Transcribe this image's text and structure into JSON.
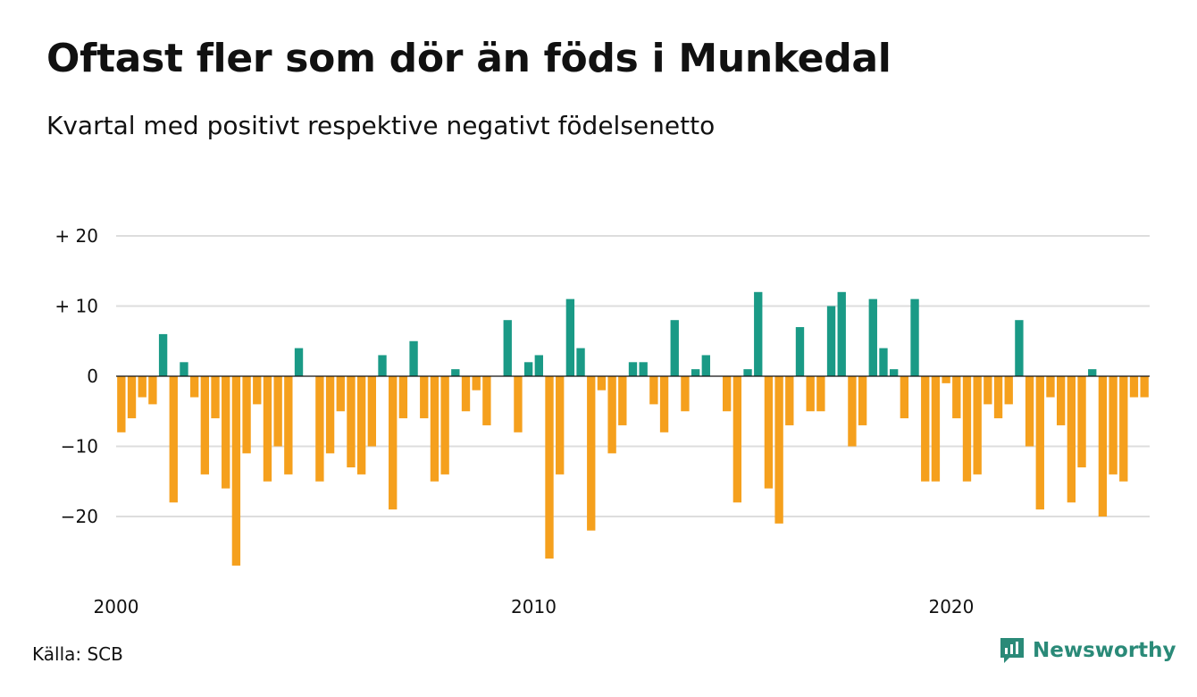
{
  "title": "Oftast fler som dör än föds i Munkedal",
  "subtitle": "Kvartal med positivt respektive negativt födelsenetto",
  "source": "Källa: SCB",
  "brand": "Newsworthy",
  "colors": {
    "positive": "#1a9a86",
    "negative": "#f5a01d",
    "grid": "#dddddd",
    "brand": "#2a8a78"
  },
  "chart_data": {
    "type": "bar",
    "title": "Oftast fler som dör än föds i Munkedal",
    "subtitle": "Kvartal med positivt respektive negativt födelsenetto",
    "ylim": [
      -28,
      20
    ],
    "y_ticks": [
      20,
      10,
      0,
      -10,
      -20
    ],
    "y_tick_labels": [
      "+ 20",
      "+ 10",
      "0",
      "−10",
      "−20"
    ],
    "x_ticks": [
      2000,
      2010,
      2020
    ],
    "grid": true,
    "start": "2000 Q1",
    "values": [
      -8,
      -6,
      -3,
      -4,
      6,
      -18,
      2,
      -3,
      -14,
      -6,
      -16,
      -27,
      -11,
      -4,
      -15,
      -10,
      -14,
      4,
      0,
      -15,
      -11,
      -5,
      -13,
      -14,
      -10,
      3,
      -19,
      -6,
      5,
      -6,
      -15,
      -14,
      1,
      -5,
      -2,
      -7,
      0,
      8,
      -8,
      2,
      3,
      -26,
      -14,
      11,
      4,
      -22,
      -2,
      -11,
      -7,
      2,
      2,
      -4,
      -8,
      8,
      -5,
      1,
      3,
      0,
      -5,
      -18,
      1,
      12,
      -16,
      -21,
      -7,
      7,
      -5,
      -5,
      10,
      12,
      -10,
      -7,
      11,
      4,
      1,
      -6,
      11,
      -15,
      -15,
      -1,
      -6,
      -15,
      -14,
      -4,
      -6,
      -4,
      8,
      -10,
      -19,
      -3,
      -7,
      -18,
      -13,
      1,
      -20,
      -14,
      -15,
      -3,
      -3
    ]
  }
}
